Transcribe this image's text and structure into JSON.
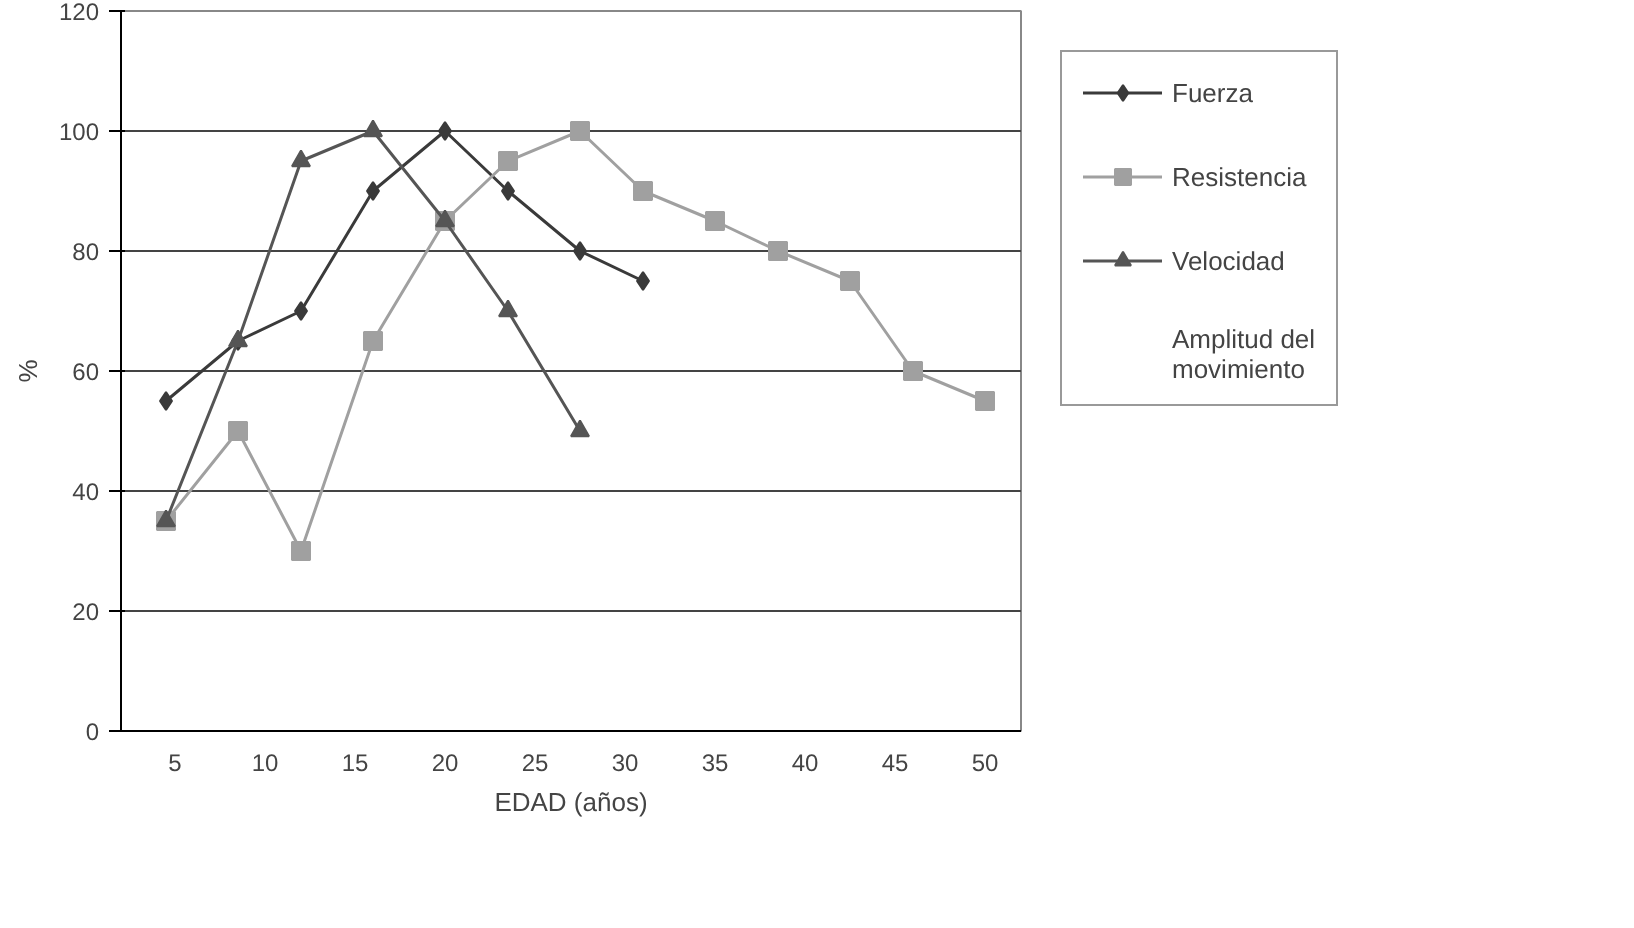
{
  "chart_data": {
    "type": "line",
    "xlabel": "EDAD (años)",
    "ylabel": "%",
    "xlim": [
      2,
      52
    ],
    "xticks": [
      5,
      10,
      15,
      20,
      25,
      30,
      35,
      40,
      45,
      50
    ],
    "ylim": [
      0,
      120
    ],
    "yticks": [
      0,
      20,
      40,
      60,
      80,
      100,
      120
    ],
    "grid": "y",
    "legend": "right",
    "x": [
      4.5,
      8.5,
      12,
      16,
      20,
      23.5,
      27.5,
      31,
      35,
      38.5,
      42.5,
      46,
      50
    ],
    "series": [
      {
        "name": "Fuerza",
        "color": "#3a3a3a",
        "marker": "diamond",
        "values": [
          55,
          65,
          70,
          90,
          100,
          90,
          80,
          75,
          null,
          null,
          null,
          null,
          null
        ]
      },
      {
        "name": "Resistencia",
        "color": "#a0a0a0",
        "marker": "square",
        "values": [
          35,
          50,
          30,
          65,
          85,
          95,
          100,
          90,
          85,
          80,
          75,
          60,
          55
        ]
      },
      {
        "name": "Velocidad",
        "color": "#555555",
        "marker": "triangle",
        "values": [
          35,
          65,
          95,
          100,
          85,
          70,
          50,
          null,
          null,
          null,
          null,
          null,
          null
        ]
      },
      {
        "name": "Amplitud del movimiento",
        "marker": "none",
        "values": [
          null,
          null,
          null,
          null,
          null,
          null,
          null,
          null,
          null,
          null,
          null,
          null,
          null
        ]
      }
    ]
  }
}
